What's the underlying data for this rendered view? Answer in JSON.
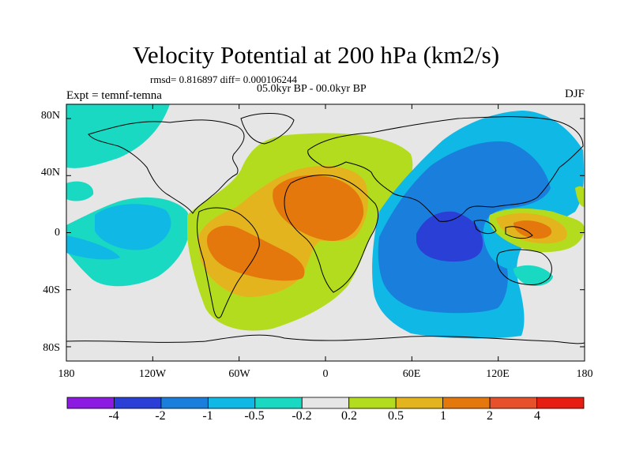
{
  "title": "Velocity Potential at 200 hPa (km2/s)",
  "stats": "rmsd= 0.816897 diff= 0.000106244",
  "period": "05.0kyr BP - 00.0kyr BP",
  "experiment": "Expt = temnf-temna",
  "season": "DJF",
  "map": {
    "lon_range": [
      -180,
      180
    ],
    "lat_range": [
      -90,
      90
    ],
    "y_ticks": [
      {
        "label": "80N",
        "lat": 80
      },
      {
        "label": "40N",
        "lat": 40
      },
      {
        "label": "0",
        "lat": 0
      },
      {
        "label": "40S",
        "lat": -40
      },
      {
        "label": "80S",
        "lat": -80
      }
    ],
    "x_ticks": [
      {
        "label": "180",
        "lon": -180
      },
      {
        "label": "120W",
        "lon": -120
      },
      {
        "label": "60W",
        "lon": -60
      },
      {
        "label": "0",
        "lon": 0
      },
      {
        "label": "60E",
        "lon": 60
      },
      {
        "label": "120E",
        "lon": 120
      },
      {
        "label": "180",
        "lon": 180
      }
    ]
  },
  "colorbar": {
    "levels": [
      "-4",
      "-2",
      "-1",
      "-0.5",
      "-0.2",
      "0.2",
      "0.5",
      "1",
      "2",
      "4"
    ],
    "colors": [
      "#8c1ae0",
      "#2a3fd6",
      "#1a7fdc",
      "#10b8e6",
      "#1ad9c2",
      "#e6e6e6",
      "#b4dc1e",
      "#e4b41e",
      "#e4780c",
      "#e6502a",
      "#e61e12"
    ]
  }
}
